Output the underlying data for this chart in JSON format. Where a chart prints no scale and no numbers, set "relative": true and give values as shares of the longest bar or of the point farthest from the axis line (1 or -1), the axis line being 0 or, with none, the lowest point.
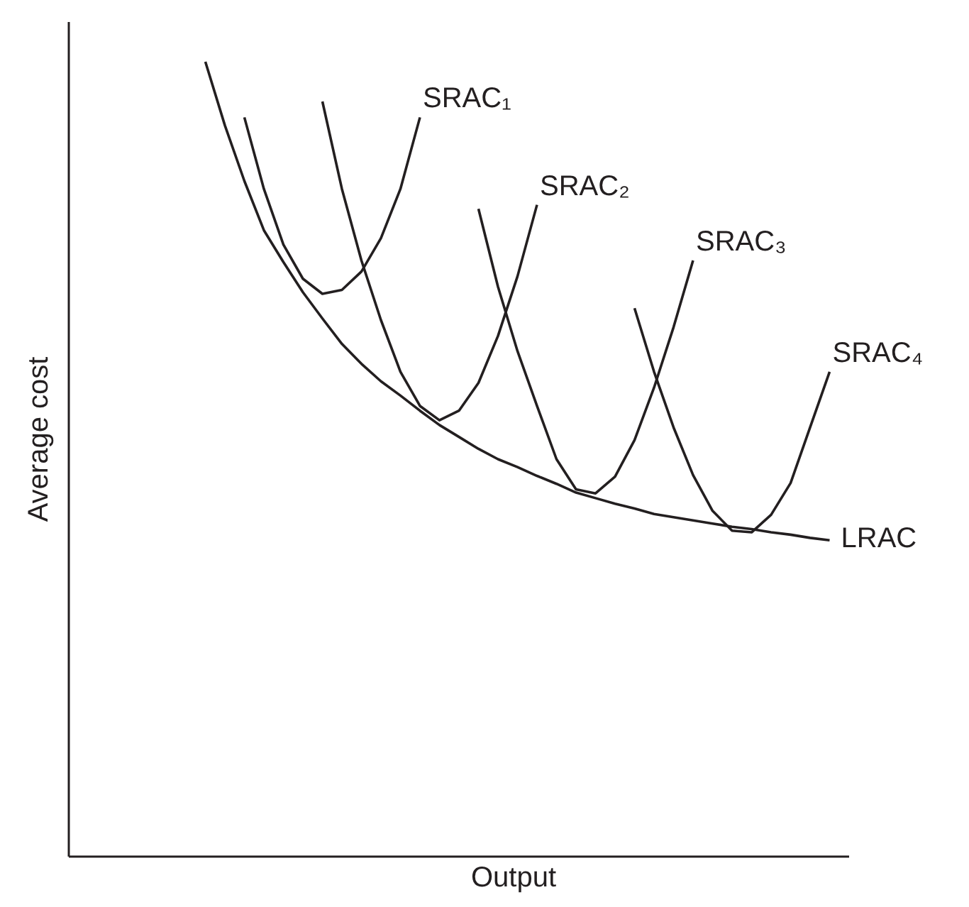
{
  "chart_data": {
    "type": "line",
    "relative": true,
    "xlabel": "Output",
    "ylabel": "Average cost",
    "grid": false,
    "line_style": "solid",
    "categories": [
      null,
      null,
      null,
      null,
      null,
      null,
      null,
      null,
      null,
      null,
      null,
      null,
      null,
      null,
      null,
      null,
      null,
      null,
      null,
      null,
      null,
      null,
      null,
      null,
      null,
      null,
      null,
      null,
      null,
      null,
      null,
      null,
      null,
      null,
      null,
      null,
      null,
      null,
      null,
      null,
      null
    ],
    "series": [
      {
        "name": "LRAC",
        "color": "#231f20",
        "values": [
          null,
          null,
          null,
          null,
          null,
          null,
          null,
          1.0,
          0.92,
          0.85,
          0.788,
          0.748,
          0.71,
          0.677,
          0.645,
          0.62,
          0.598,
          0.58,
          0.561,
          0.543,
          0.528,
          0.513,
          0.5,
          0.49,
          0.479,
          0.469,
          0.458,
          0.451,
          0.444,
          0.438,
          0.431,
          0.427,
          0.423,
          0.419,
          0.415,
          0.412,
          0.408,
          0.405,
          0.401,
          0.398,
          null
        ]
      },
      {
        "name": "SRAC₁",
        "color": "#231f20",
        "values": [
          null,
          null,
          null,
          null,
          null,
          null,
          null,
          null,
          null,
          0.93,
          0.84,
          0.77,
          0.727,
          0.708,
          0.713,
          0.736,
          0.778,
          0.84,
          0.93,
          null,
          null,
          null,
          null,
          null,
          null,
          null,
          null,
          null,
          null,
          null,
          null,
          null,
          null,
          null,
          null,
          null,
          null,
          null,
          null,
          null,
          null
        ]
      },
      {
        "name": "SRAC₂",
        "color": "#231f20",
        "values": [
          null,
          null,
          null,
          null,
          null,
          null,
          null,
          null,
          null,
          null,
          null,
          null,
          null,
          0.95,
          0.84,
          0.75,
          0.675,
          0.61,
          0.567,
          0.549,
          0.561,
          0.596,
          0.655,
          0.73,
          0.82,
          null,
          null,
          null,
          null,
          null,
          null,
          null,
          null,
          null,
          null,
          null,
          null,
          null,
          null,
          null,
          null
        ]
      },
      {
        "name": "SRAC₃",
        "color": "#231f20",
        "values": [
          null,
          null,
          null,
          null,
          null,
          null,
          null,
          null,
          null,
          null,
          null,
          null,
          null,
          null,
          null,
          null,
          null,
          null,
          null,
          null,
          null,
          0.815,
          0.717,
          0.636,
          0.567,
          0.5,
          0.462,
          0.457,
          0.478,
          0.524,
          0.59,
          0.666,
          0.75,
          null,
          null,
          null,
          null,
          null,
          null,
          null,
          null
        ]
      },
      {
        "name": "SRAC₄",
        "color": "#231f20",
        "values": [
          null,
          null,
          null,
          null,
          null,
          null,
          null,
          null,
          null,
          null,
          null,
          null,
          null,
          null,
          null,
          null,
          null,
          null,
          null,
          null,
          null,
          null,
          null,
          null,
          null,
          null,
          null,
          null,
          null,
          0.69,
          0.61,
          0.54,
          0.48,
          0.435,
          0.41,
          0.408,
          0.43,
          0.47,
          0.54,
          0.61,
          null
        ]
      }
    ]
  }
}
